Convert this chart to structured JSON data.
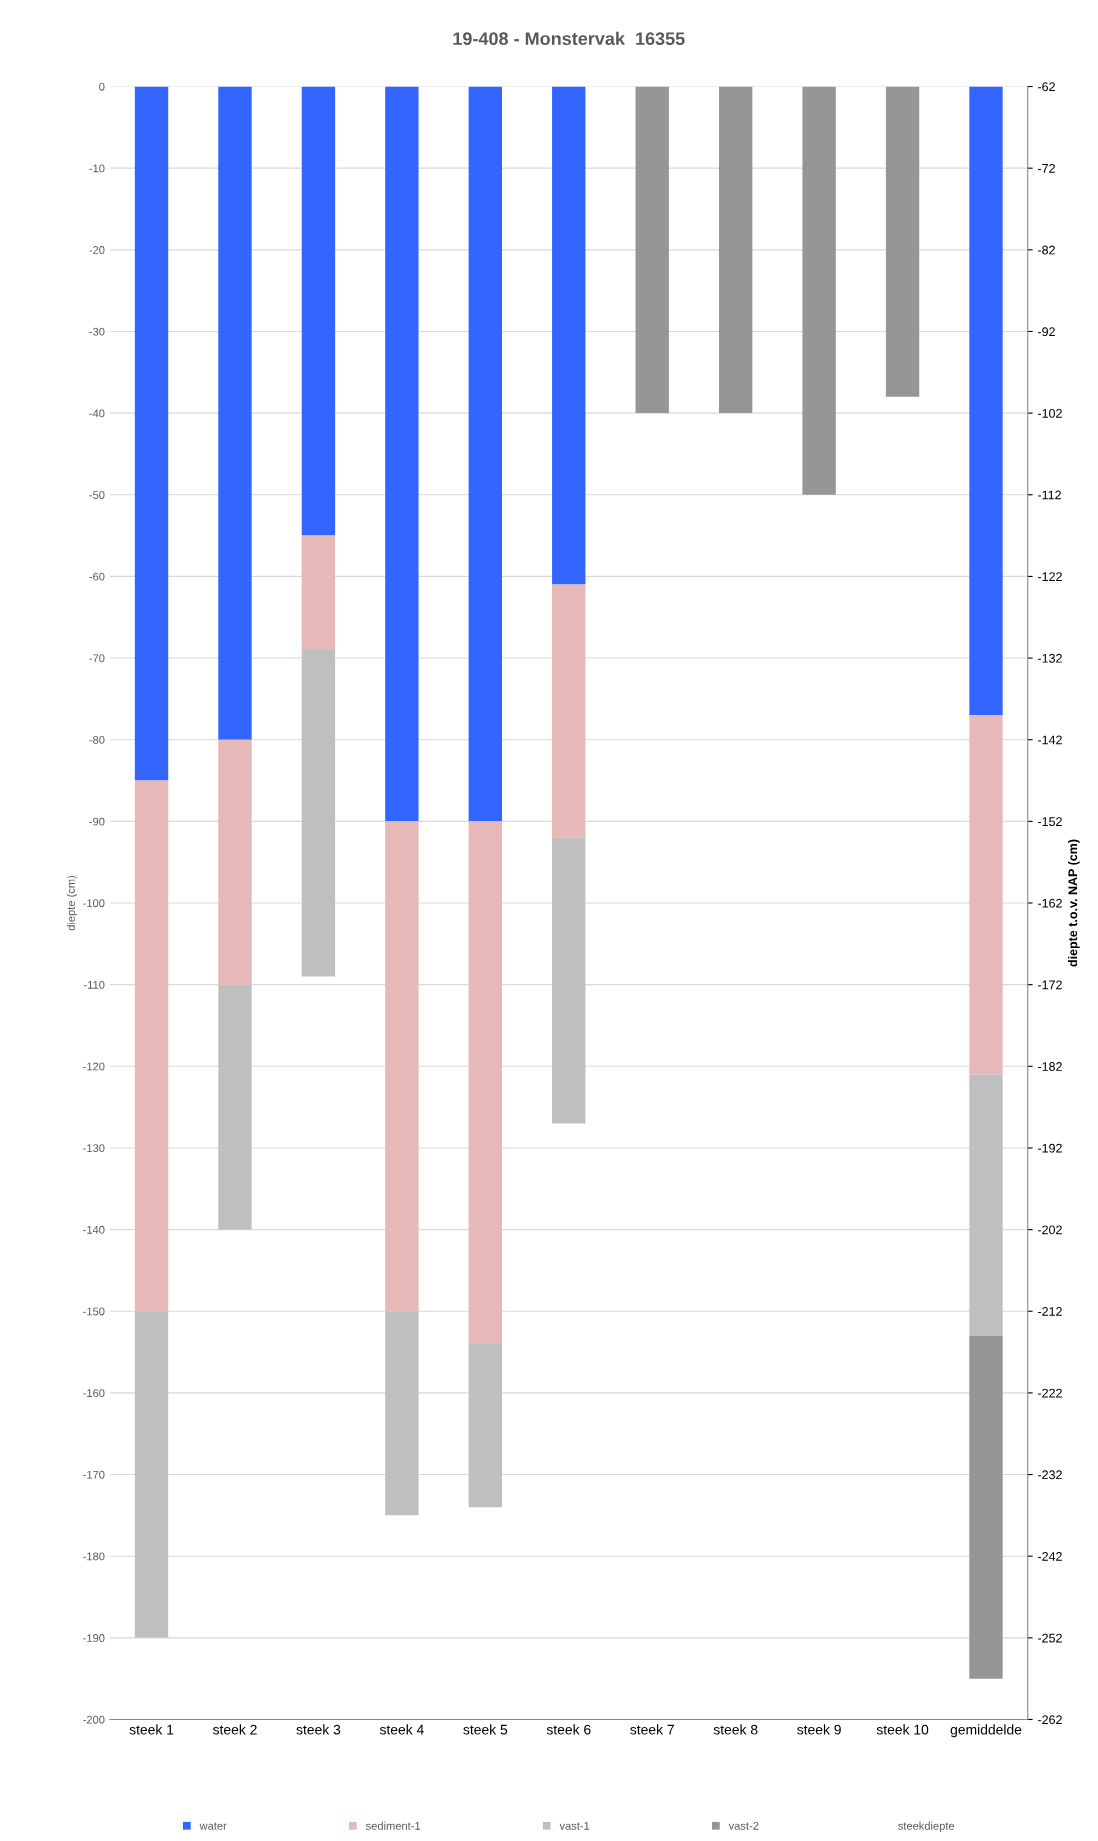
{
  "chart_data": {
    "type": "bar",
    "title": "19-408 - Monstervak  16355",
    "ylabel": "diepte (cm)",
    "y2label": "diepte t.o.v. NAP (cm)",
    "categories": [
      "steek 1",
      "steek 2",
      "steek 3",
      "steek 4",
      "steek 5",
      "steek 6",
      "steek 7",
      "steek 8",
      "steek 9",
      "steek 10",
      "gemiddelde"
    ],
    "stacked": true,
    "series": [
      {
        "name": "water",
        "color": "#3366ff",
        "values": [
          -85,
          -80,
          -55,
          -90,
          -90,
          -61,
          null,
          null,
          null,
          null,
          -77
        ]
      },
      {
        "name": "sediment-1",
        "color": "#e6b8b7",
        "values": [
          -65,
          -30,
          -14,
          -60,
          -64,
          -31,
          null,
          null,
          null,
          null,
          -44
        ]
      },
      {
        "name": "vast-1",
        "color": "#bfbfbf",
        "values": [
          -40,
          -30,
          -40,
          -25,
          -20,
          -35,
          null,
          null,
          null,
          null,
          -32
        ]
      },
      {
        "name": "vast-2",
        "color": "#969696",
        "values": [
          null,
          null,
          null,
          null,
          null,
          null,
          -40,
          -40,
          -50,
          -38,
          -42
        ]
      },
      {
        "name": "steekdiepte",
        "values": [
          null,
          null,
          null,
          null,
          null,
          null,
          null,
          null,
          null,
          null,
          null
        ]
      }
    ],
    "ylim": [
      -200,
      0
    ],
    "yticks": [
      -200,
      -190,
      -180,
      -170,
      -160,
      -150,
      -140,
      -130,
      -120,
      -110,
      -100,
      -90,
      -80,
      -70,
      -60,
      -50,
      -40,
      -30,
      -20,
      -10,
      0
    ],
    "y2lim": [
      -262,
      -62
    ],
    "y2ticks": [
      -262,
      -252,
      -242,
      -232,
      -222,
      -212,
      -202,
      -192,
      -182,
      -172,
      -162,
      -152,
      -142,
      -132,
      -122,
      -112,
      -102,
      -92,
      -82,
      -72,
      -62
    ],
    "grid": "y",
    "legend": "bottom"
  }
}
